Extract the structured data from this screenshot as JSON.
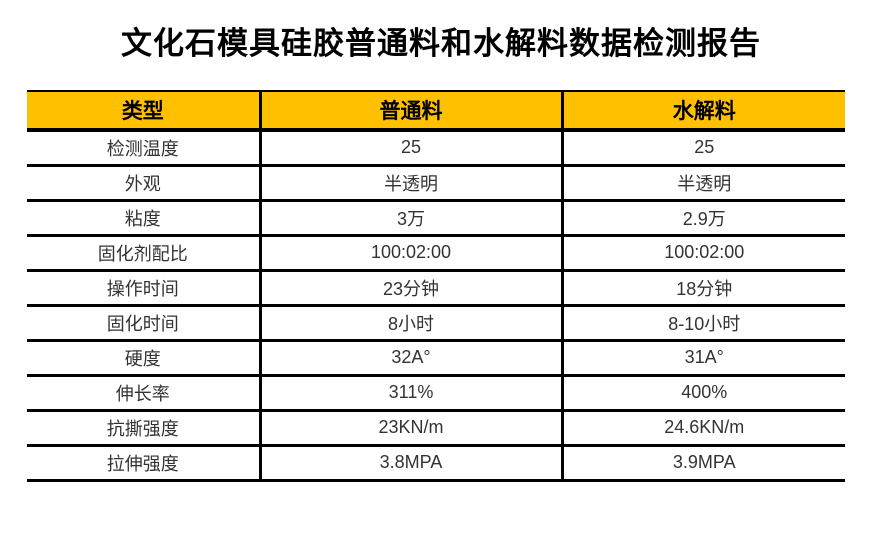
{
  "page": {
    "title": "文化石模具硅胶普通料和水解料数据检测报告"
  },
  "colors": {
    "header_bg": "#FFC000",
    "border": "#000000",
    "title_text": "#000000",
    "cell_text": "#333333"
  },
  "table": {
    "header": {
      "type_label": "类型",
      "ordinary_label": "普通料",
      "hydrolyzed_label": "水解料"
    },
    "rows": [
      {
        "label": "检测温度",
        "ordinary": "25",
        "hydrolyzed": "25"
      },
      {
        "label": "外观",
        "ordinary": "半透明",
        "hydrolyzed": "半透明"
      },
      {
        "label": "粘度",
        "ordinary": "3万",
        "hydrolyzed": "2.9万"
      },
      {
        "label": "固化剂配比",
        "ordinary": "100:02:00",
        "hydrolyzed": "100:02:00"
      },
      {
        "label": "操作时间",
        "ordinary": "23分钟",
        "hydrolyzed": "18分钟"
      },
      {
        "label": "固化时间",
        "ordinary": "8小时",
        "hydrolyzed": "8-10小时"
      },
      {
        "label": "硬度",
        "ordinary": "32A°",
        "hydrolyzed": "31A°"
      },
      {
        "label": "伸长率",
        "ordinary": "311%",
        "hydrolyzed": "400%"
      },
      {
        "label": "抗撕强度",
        "ordinary": "23KN/m",
        "hydrolyzed": "24.6KN/m"
      },
      {
        "label": "拉伸强度",
        "ordinary": "3.8MPA",
        "hydrolyzed": "3.9MPA"
      }
    ]
  }
}
